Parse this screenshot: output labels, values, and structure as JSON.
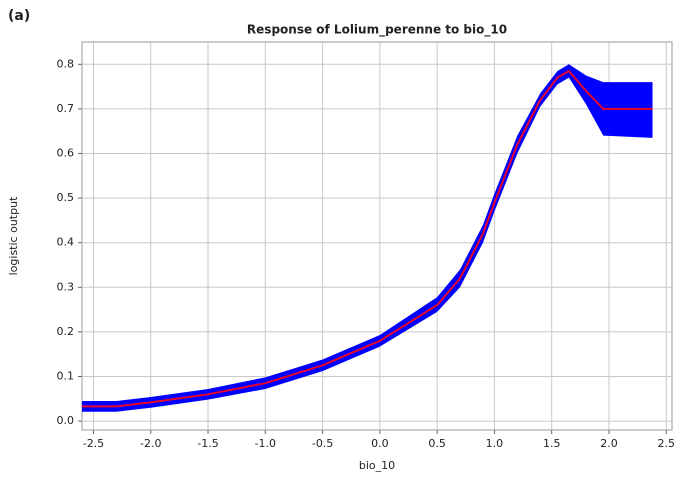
{
  "panel_label": "(a)",
  "chart_data": {
    "type": "line",
    "title": "Response of Lolium_perenne to bio_10",
    "x_label": "bio_10",
    "y_label": "logistic output",
    "x": [
      -2.6,
      -2.3,
      -2.0,
      -1.5,
      -1.0,
      -0.5,
      0,
      0.5,
      0.7,
      0.9,
      1.0,
      1.2,
      1.4,
      1.55,
      1.65,
      1.8,
      1.95,
      2.38
    ],
    "series": [
      {
        "color": "#e8002a",
        "values": [
          0.033,
          0.033,
          0.042,
          0.06,
          0.085,
          0.125,
          0.18,
          0.26,
          0.32,
          0.42,
          0.49,
          0.62,
          0.72,
          0.77,
          0.785,
          0.74,
          0.7,
          0.7
        ]
      }
    ],
    "band": {
      "color": "#0000ff",
      "upper": [
        0.045,
        0.045,
        0.054,
        0.072,
        0.098,
        0.138,
        0.193,
        0.278,
        0.34,
        0.44,
        0.51,
        0.64,
        0.735,
        0.785,
        0.8,
        0.775,
        0.76,
        0.76
      ],
      "lower": [
        0.021,
        0.021,
        0.03,
        0.048,
        0.072,
        0.112,
        0.167,
        0.245,
        0.3,
        0.4,
        0.47,
        0.6,
        0.705,
        0.755,
        0.77,
        0.71,
        0.64,
        0.635
      ]
    },
    "xlim": [
      -2.6,
      2.55
    ],
    "ylim": [
      -0.02,
      0.85
    ],
    "xticks": [
      -2.5,
      {
        "value": -2,
        "label": "-2.0"
      },
      -1.5,
      {
        "value": -1,
        "label": "-1.0"
      },
      -0.5,
      {
        "value": 0,
        "label": "0.0"
      },
      0.5,
      {
        "value": 1,
        "label": "1.0"
      },
      1.5,
      {
        "value": 2,
        "label": "2.0"
      },
      2.5
    ],
    "yticks": [
      {
        "value": 0,
        "label": "0.0"
      },
      0.1,
      0.2,
      0.3,
      0.4,
      0.5,
      0.6,
      0.7,
      0.8
    ],
    "grid": true
  }
}
